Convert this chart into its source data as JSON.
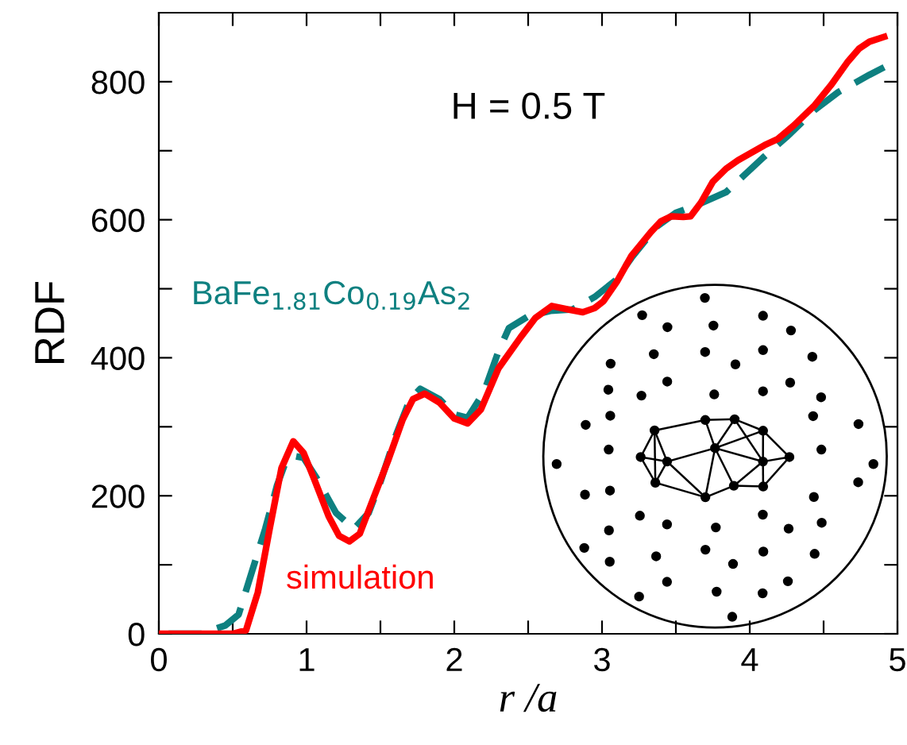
{
  "chart_data": {
    "type": "line",
    "xlabel": "r /a",
    "ylabel": "RDF",
    "annotations": [
      "H = 0.5 T"
    ],
    "xlim": [
      0,
      5
    ],
    "ylim": [
      0,
      900
    ],
    "xticks": [
      0,
      {
        "value": 0.5,
        "label": null
      },
      1,
      {
        "value": 1.5,
        "label": null
      },
      2,
      {
        "value": 2.5,
        "label": null
      },
      3,
      {
        "value": 3.5,
        "label": null
      },
      4,
      {
        "value": 4.5,
        "label": null
      },
      5
    ],
    "yticks": [
      0,
      {
        "value": 100,
        "label": null
      },
      200,
      {
        "value": 300,
        "label": null
      },
      400,
      {
        "value": 500,
        "label": null
      },
      600,
      {
        "value": 700,
        "label": null
      },
      800
    ],
    "grid": false,
    "legend": false,
    "marker": "none",
    "series": [
      {
        "name": "BaFe$_{1.81}$Co$_{0.19}$As$_{2}$",
        "color": "#0e8080",
        "line_style": "dashed",
        "x": [
          0,
          0.3,
          0.35,
          0.45,
          0.54,
          0.63,
          0.72,
          0.8,
          0.86,
          0.91,
          0.98,
          1.07,
          1.2,
          1.32,
          1.42,
          1.5,
          1.6,
          1.7,
          1.77,
          1.9,
          2.0,
          2.09,
          2.2,
          2.3,
          2.37,
          2.5,
          2.65,
          2.8,
          2.95,
          3.09,
          3.2,
          3.37,
          3.5,
          3.65,
          3.84,
          3.95,
          4.09,
          4.25,
          4.44,
          4.6,
          4.81,
          4.91
        ],
        "values": [
          0,
          0,
          5,
          12,
          28,
          90,
          152,
          215,
          250,
          258,
          255,
          225,
          175,
          152,
          175,
          220,
          285,
          340,
          355,
          340,
          318,
          313,
          350,
          410,
          443,
          460,
          468,
          470,
          488,
          512,
          545,
          590,
          610,
          622,
          640,
          662,
          690,
          720,
          759,
          785,
          810,
          821
        ]
      },
      {
        "name": "simulation",
        "color": "#ff0000",
        "line_style": "solid",
        "x": [
          0,
          0.5,
          0.59,
          0.67,
          0.75,
          0.83,
          0.91,
          0.98,
          1.05,
          1.15,
          1.22,
          1.29,
          1.36,
          1.45,
          1.55,
          1.65,
          1.72,
          1.8,
          1.9,
          2.0,
          2.09,
          2.18,
          2.3,
          2.45,
          2.55,
          2.66,
          2.77,
          2.87,
          2.95,
          3.01,
          3.1,
          3.2,
          3.33,
          3.4,
          3.47,
          3.55,
          3.6,
          3.67,
          3.75,
          3.84,
          3.92,
          4.01,
          4.1,
          4.19,
          4.3,
          4.44,
          4.55,
          4.66,
          4.74,
          4.81,
          4.91
        ],
        "values": [
          0,
          0,
          5,
          60,
          152,
          240,
          279,
          262,
          225,
          170,
          142,
          134,
          145,
          195,
          250,
          310,
          340,
          348,
          335,
          312,
          305,
          325,
          385,
          430,
          458,
          475,
          470,
          466,
          472,
          482,
          510,
          548,
          582,
          598,
          605,
          604,
          605,
          625,
          655,
          674,
          686,
          697,
          708,
          717,
          737,
          766,
          795,
          828,
          848,
          858,
          865
        ]
      }
    ]
  }
}
